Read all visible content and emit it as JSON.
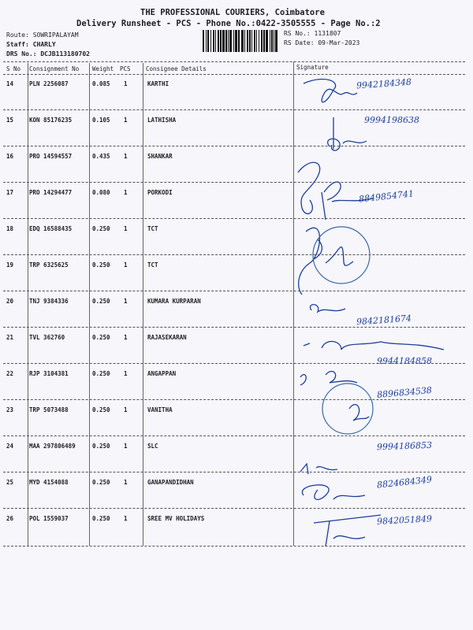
{
  "header": {
    "company": "THE PROFESSIONAL COURIERS, Coimbatore",
    "subtitle": "Delivery Runsheet - PCS - Phone No.:0422-3505555 - Page No.:2",
    "route_label": "Route:",
    "route": "SOWRIPALAYAM",
    "staff_label": "Staff:",
    "staff": "CHARLY",
    "drs_label": "DRS No.:",
    "drs": "DCJB113180702",
    "rs_no_label": "RS No.:",
    "rs_no": "1131807",
    "rs_date_label": "RS Date:",
    "rs_date": "09-Mar-2023"
  },
  "table": {
    "columns": [
      "S No",
      "Consignment No",
      "Weight",
      "PCS",
      "Consignee Details",
      "Signature"
    ],
    "rows": [
      {
        "sno": "14",
        "consignment": "PLN 2256087",
        "weight": "0.085",
        "pcs": "1",
        "consignee": "KARTHI"
      },
      {
        "sno": "15",
        "consignment": "KON 85176235",
        "weight": "0.105",
        "pcs": "1",
        "consignee": "LATHISHA"
      },
      {
        "sno": "16",
        "consignment": "PRO 14594557",
        "weight": "0.435",
        "pcs": "1",
        "consignee": "SHANKAR"
      },
      {
        "sno": "17",
        "consignment": "PRO 14294477",
        "weight": "0.080",
        "pcs": "1",
        "consignee": "PORKODI"
      },
      {
        "sno": "18",
        "consignment": "EDQ 16588435",
        "weight": "0.250",
        "pcs": "1",
        "consignee": "TCT"
      },
      {
        "sno": "19",
        "consignment": "TRP 6325625",
        "weight": "0.250",
        "pcs": "1",
        "consignee": "TCT"
      },
      {
        "sno": "20",
        "consignment": "TNJ 9384336",
        "weight": "0.250",
        "pcs": "1",
        "consignee": "KUMARA KURPARAN"
      },
      {
        "sno": "21",
        "consignment": "TVL 362760",
        "weight": "0.250",
        "pcs": "1",
        "consignee": "RAJASEKARAN"
      },
      {
        "sno": "22",
        "consignment": "RJP 3104381",
        "weight": "0.250",
        "pcs": "1",
        "consignee": "ANGAPPAN"
      },
      {
        "sno": "23",
        "consignment": "TRP 5073488",
        "weight": "0.250",
        "pcs": "1",
        "consignee": "VANITHA"
      },
      {
        "sno": "24",
        "consignment": "MAA 297806489",
        "weight": "0.250",
        "pcs": "1",
        "consignee": "SLC"
      },
      {
        "sno": "25",
        "consignment": "MYD 4154088",
        "weight": "0.250",
        "pcs": "1",
        "consignee": "GANAPANDIDHAN"
      },
      {
        "sno": "26",
        "consignment": "POL 1559037",
        "weight": "0.250",
        "pcs": "1",
        "consignee": "SREE MV HOLIDAYS"
      }
    ]
  },
  "handwritten": [
    "9942184348",
    "9994198638",
    "8849854741",
    "9842181674",
    "9944184858",
    "8896834538",
    "9994186853",
    "8824684349",
    "9842051849"
  ],
  "colors": {
    "ink": "#1d3f9a",
    "stamp": "#3a6aa8",
    "paper": "#f6f6fb"
  }
}
